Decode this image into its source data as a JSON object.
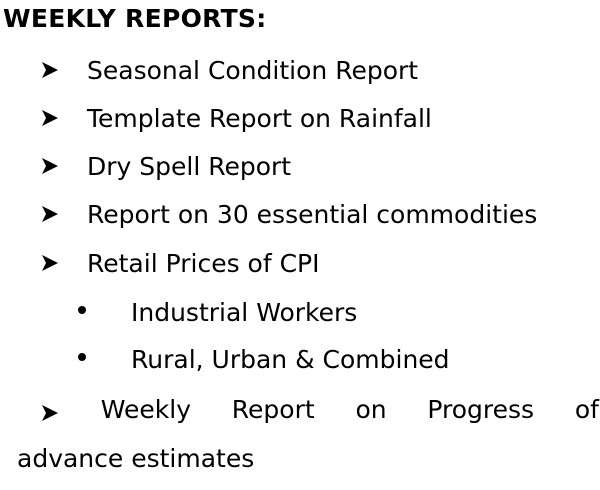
{
  "heading": "WEEKLY REPORTS:",
  "reports": [
    "Seasonal Condition Report",
    "Template Report on Rainfall",
    "Dry Spell Report",
    "Report on 30 essential commodities",
    "Retail Prices of CPI"
  ],
  "sub_items": [
    "Industrial Workers",
    "Rural, Urban & Combined"
  ],
  "last_item": {
    "words": [
      "Weekly",
      "Report",
      "on",
      "Progress",
      "of"
    ],
    "continuation": "advance estimates"
  },
  "icons": {
    "arrow": "arrow-bullet-icon",
    "dot": "round-bullet-icon"
  }
}
